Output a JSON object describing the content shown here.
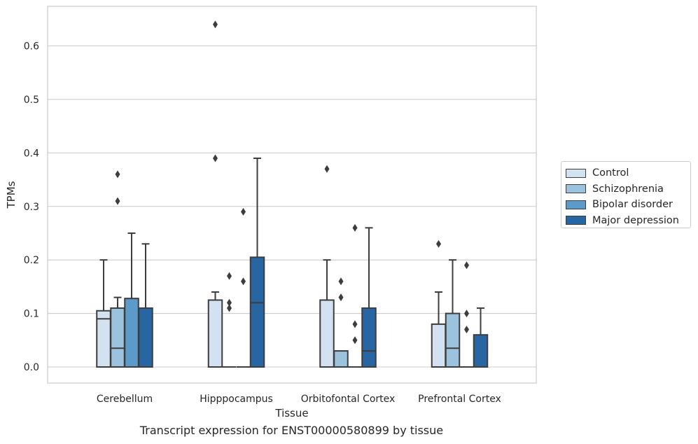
{
  "caption": "Transcript expression for ENST00000580899 by tissue",
  "chart_data": {
    "type": "box",
    "title": "",
    "xlabel": "Tissue",
    "ylabel": "TPMs",
    "ylim": [
      -0.03,
      0.675
    ],
    "yticks": [
      "0.0",
      "0.1",
      "0.2",
      "0.3",
      "0.4",
      "0.5",
      "0.6"
    ],
    "grid": "horizontal",
    "legend_position": "right",
    "categories": [
      "Cerebellum",
      "Hipppocampus",
      "Orbitofontal Cortex",
      "Prefrontal Cortex"
    ],
    "series": [
      {
        "name": "Control",
        "color": "#d3e2f0",
        "boxes": [
          {
            "q1": 0.0,
            "median": 0.09,
            "q3": 0.105,
            "whisker_low": 0.0,
            "whisker_high": 0.2,
            "outliers": []
          },
          {
            "q1": 0.0,
            "median": 0.0,
            "q3": 0.125,
            "whisker_low": 0.0,
            "whisker_high": 0.14,
            "outliers": [
              0.39,
              0.64
            ]
          },
          {
            "q1": 0.0,
            "median": 0.0,
            "q3": 0.125,
            "whisker_low": 0.0,
            "whisker_high": 0.2,
            "outliers": [
              0.37
            ]
          },
          {
            "q1": 0.0,
            "median": 0.0,
            "q3": 0.08,
            "whisker_low": 0.0,
            "whisker_high": 0.14,
            "outliers": [
              0.23
            ]
          }
        ]
      },
      {
        "name": "Schizophrenia",
        "color": "#9bc3dd",
        "boxes": [
          {
            "q1": 0.0,
            "median": 0.035,
            "q3": 0.11,
            "whisker_low": 0.0,
            "whisker_high": 0.13,
            "outliers": [
              0.31,
              0.36
            ]
          },
          {
            "q1": 0.0,
            "median": 0.0,
            "q3": 0.0,
            "whisker_low": 0.0,
            "whisker_high": 0.0,
            "outliers": [
              0.11,
              0.12,
              0.17
            ]
          },
          {
            "q1": 0.0,
            "median": 0.0,
            "q3": 0.03,
            "whisker_low": 0.0,
            "whisker_high": 0.03,
            "outliers": [
              0.13,
              0.16
            ]
          },
          {
            "q1": 0.0,
            "median": 0.035,
            "q3": 0.1,
            "whisker_low": 0.0,
            "whisker_high": 0.2,
            "outliers": []
          }
        ]
      },
      {
        "name": "Bipolar disorder",
        "color": "#5c9ac9",
        "boxes": [
          {
            "q1": 0.0,
            "median": 0.0,
            "q3": 0.128,
            "whisker_low": 0.0,
            "whisker_high": 0.25,
            "outliers": []
          },
          {
            "q1": 0.0,
            "median": 0.0,
            "q3": 0.0,
            "whisker_low": 0.0,
            "whisker_high": 0.0,
            "outliers": [
              0.16,
              0.29
            ]
          },
          {
            "q1": 0.0,
            "median": 0.0,
            "q3": 0.0,
            "whisker_low": 0.0,
            "whisker_high": 0.0,
            "outliers": [
              0.05,
              0.08,
              0.26
            ]
          },
          {
            "q1": 0.0,
            "median": 0.0,
            "q3": 0.0,
            "whisker_low": 0.0,
            "whisker_high": 0.0,
            "outliers": [
              0.07,
              0.1,
              0.19
            ]
          }
        ]
      },
      {
        "name": "Major depression",
        "color": "#2866a3",
        "boxes": [
          {
            "q1": 0.0,
            "median": 0.0,
            "q3": 0.11,
            "whisker_low": 0.0,
            "whisker_high": 0.23,
            "outliers": []
          },
          {
            "q1": 0.0,
            "median": 0.12,
            "q3": 0.205,
            "whisker_low": 0.0,
            "whisker_high": 0.39,
            "outliers": []
          },
          {
            "q1": 0.0,
            "median": 0.03,
            "q3": 0.11,
            "whisker_low": 0.0,
            "whisker_high": 0.26,
            "outliers": []
          },
          {
            "q1": 0.0,
            "median": 0.0,
            "q3": 0.06,
            "whisker_low": 0.0,
            "whisker_high": 0.11,
            "outliers": []
          }
        ]
      }
    ]
  }
}
